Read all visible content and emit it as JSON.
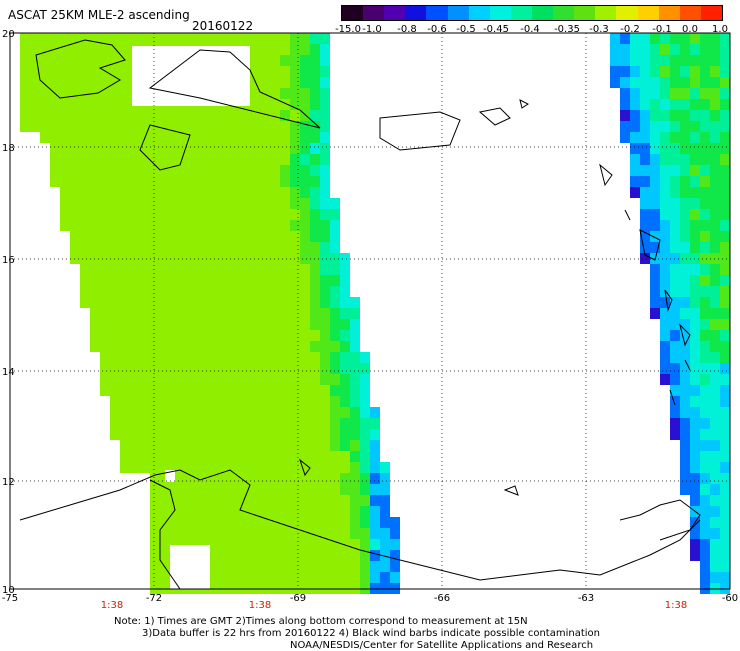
{
  "header": {
    "title": "ASCAT 25KM MLE-2 ascending",
    "date": "20160122"
  },
  "colorbar": {
    "labels": [
      "-15.0",
      "-1.0",
      "-0.8",
      "-0.6",
      "-0.5",
      "-0.45",
      "-0.4",
      "-0.35",
      "-0.3",
      "-0.2",
      "-0.1",
      "0.0",
      "1.0"
    ],
    "colors": [
      "#200020",
      "#4b0070",
      "#5000b0",
      "#1010e0",
      "#0050ff",
      "#0090ff",
      "#00d0ff",
      "#00f0e0",
      "#00f0a0",
      "#00e060",
      "#30e030",
      "#60e010",
      "#a0f000",
      "#e0f000",
      "#ffd000",
      "#ff9000",
      "#ff5000",
      "#ff2000"
    ]
  },
  "axes": {
    "y_labels": [
      "20",
      "18",
      "16",
      "14",
      "12",
      "10"
    ],
    "x_labels": [
      "-75",
      "-72",
      "-69",
      "-66",
      "-63",
      "-60"
    ]
  },
  "times": [
    "1:38",
    "1:38",
    "1:38"
  ],
  "notes": {
    "line1": "Note: 1) Times are GMT 2)Times along bottom correspond to measurement at 15N",
    "line2": "3)Data buffer is 22 hrs from 20160122 4) Black wind barbs indicate possible contamination",
    "line3": "NOAA/NESDIS/Center for Satellite Applications and Research"
  }
}
